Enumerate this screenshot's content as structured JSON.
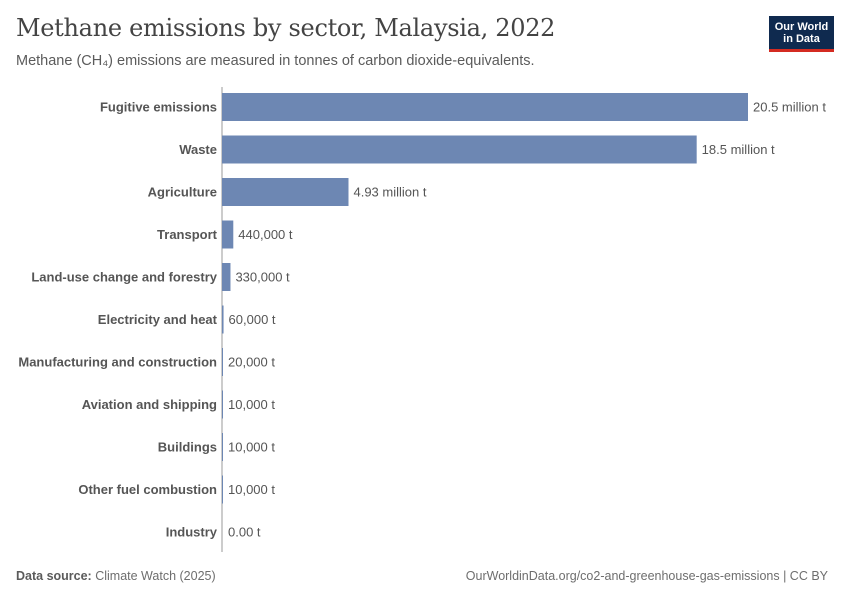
{
  "header": {
    "title": "Methane emissions by sector, Malaysia, 2022",
    "subtitle": "Methane (CH₄) emissions are measured in tonnes of carbon dioxide-equivalents."
  },
  "logo": {
    "line1": "Our World",
    "line2": "in Data"
  },
  "footer": {
    "source_label": "Data source:",
    "source_value": "Climate Watch (2025)",
    "url": "OurWorldinData.org/co2-and-greenhouse-gas-emissions | CC BY"
  },
  "colors": {
    "bar": "#6d87b3",
    "text": "#444444",
    "axis": "#9a9a9a",
    "logo_bg": "#0f2a4f",
    "logo_accent": "#d42b21"
  },
  "chart_data": {
    "type": "bar",
    "orientation": "horizontal",
    "categories": [
      "Fugitive emissions",
      "Waste",
      "Agriculture",
      "Transport",
      "Land-use change and forestry",
      "Electricity and heat",
      "Manufacturing and construction",
      "Aviation and shipping",
      "Buildings",
      "Other fuel combustion",
      "Industry"
    ],
    "values": [
      20500000,
      18500000,
      4930000,
      440000,
      330000,
      60000,
      20000,
      10000,
      10000,
      10000,
      0
    ],
    "value_labels": [
      "20.5 million t",
      "18.5 million t",
      "4.93 million t",
      "440,000 t",
      "330,000 t",
      "60,000 t",
      "20,000 t",
      "10,000 t",
      "10,000 t",
      "10,000 t",
      "0.00 t"
    ],
    "xlim": [
      0,
      20500000
    ],
    "unit": "tonnes CO₂-equivalents"
  }
}
